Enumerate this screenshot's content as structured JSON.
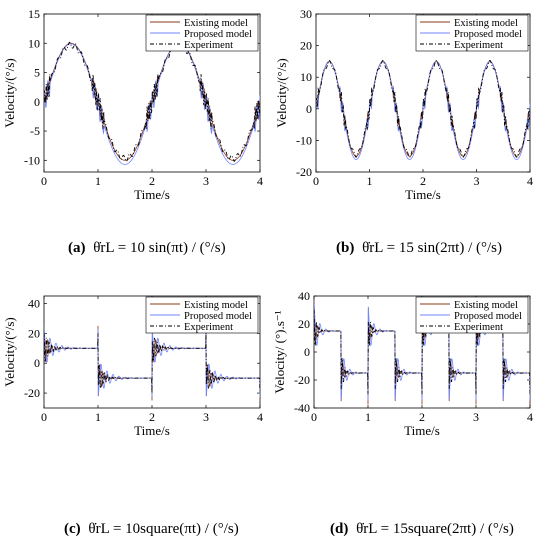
{
  "legend_labels": [
    "Existing model",
    "Proposed model",
    "Experiment"
  ],
  "colors": {
    "existing": "#8a3a1a",
    "proposed": "#6f86ff",
    "experiment": "#000000",
    "red_osc": "#e0003a"
  },
  "captions": [
    {
      "tag": "(a)",
      "text": "θ̇rL = 10 sin(πt) / (°/s)"
    },
    {
      "tag": "(b)",
      "text": "θ̇rL = 15 sin(2πt) / (°/s)"
    },
    {
      "tag": "(c)",
      "text": "θ̇rL = 10square(πt) / (°/s)"
    },
    {
      "tag": "(d)",
      "text": "θ̇rL = 15square(2πt) / (°/s)"
    }
  ],
  "chart_data": [
    {
      "type": "line",
      "id": "a",
      "xlabel": "Time/s",
      "ylabel": "Velocity/(°/s)",
      "xlim": [
        0,
        4
      ],
      "ylim": [
        -12,
        15
      ],
      "xticks": [
        0,
        1,
        2,
        3,
        4
      ],
      "yticks": [
        -10,
        -5,
        0,
        5,
        10,
        15
      ],
      "signal": {
        "kind": "sin",
        "amplitude": 10,
        "frequency_hz": 0.5,
        "duration_s": 4
      },
      "series": [
        {
          "name": "Existing model",
          "style": "solid",
          "color": "#8a3a1a"
        },
        {
          "name": "Proposed model",
          "style": "solid",
          "color": "#6f86ff"
        },
        {
          "name": "Experiment",
          "style": "dashdot",
          "color": "#000000"
        }
      ],
      "legend_loc": "top-right"
    },
    {
      "type": "line",
      "id": "b",
      "xlabel": "Time/s",
      "ylabel": "Velocity/(°/s)",
      "xlim": [
        0,
        4
      ],
      "ylim": [
        -20,
        30
      ],
      "xticks": [
        0,
        1,
        2,
        3,
        4
      ],
      "yticks": [
        -20,
        -10,
        0,
        10,
        20,
        30
      ],
      "signal": {
        "kind": "sin",
        "amplitude": 15,
        "frequency_hz": 1,
        "duration_s": 4
      },
      "series": [
        {
          "name": "Existing model",
          "style": "solid",
          "color": "#8a3a1a"
        },
        {
          "name": "Proposed model",
          "style": "solid",
          "color": "#6f86ff"
        },
        {
          "name": "Experiment",
          "style": "dashdot",
          "color": "#000000"
        }
      ],
      "legend_loc": "top-right"
    },
    {
      "type": "line",
      "id": "c",
      "xlabel": "Time/s",
      "ylabel": "Velocity/(°/s)",
      "xlim": [
        0,
        4
      ],
      "ylim": [
        -30,
        45
      ],
      "xticks": [
        0,
        1,
        2,
        3,
        4
      ],
      "yticks": [
        -20,
        0,
        20,
        40
      ],
      "signal": {
        "kind": "square",
        "amplitude": 10,
        "frequency_hz": 0.5,
        "duration_s": 4
      },
      "series": [
        {
          "name": "Existing model",
          "style": "solid",
          "color": "#8a3a1a"
        },
        {
          "name": "Proposed model",
          "style": "solid",
          "color": "#6f86ff"
        },
        {
          "name": "Experiment",
          "style": "dashdot",
          "color": "#000000"
        }
      ],
      "legend_loc": "top-right"
    },
    {
      "type": "line",
      "id": "d",
      "xlabel": "Time/s",
      "ylabel": "Velocity/ (°).s⁻¹",
      "xlim": [
        0,
        4
      ],
      "ylim": [
        -40,
        40
      ],
      "xticks": [
        0,
        1,
        2,
        3,
        4
      ],
      "yticks": [
        -40,
        -20,
        0,
        20,
        40
      ],
      "signal": {
        "kind": "square",
        "amplitude": 15,
        "frequency_hz": 1,
        "duration_s": 4
      },
      "series": [
        {
          "name": "Existing model",
          "style": "solid",
          "color": "#8a3a1a"
        },
        {
          "name": "Proposed model",
          "style": "solid",
          "color": "#6f86ff"
        },
        {
          "name": "Experiment",
          "style": "dashdot",
          "color": "#000000"
        }
      ],
      "legend_loc": "top-right"
    }
  ]
}
